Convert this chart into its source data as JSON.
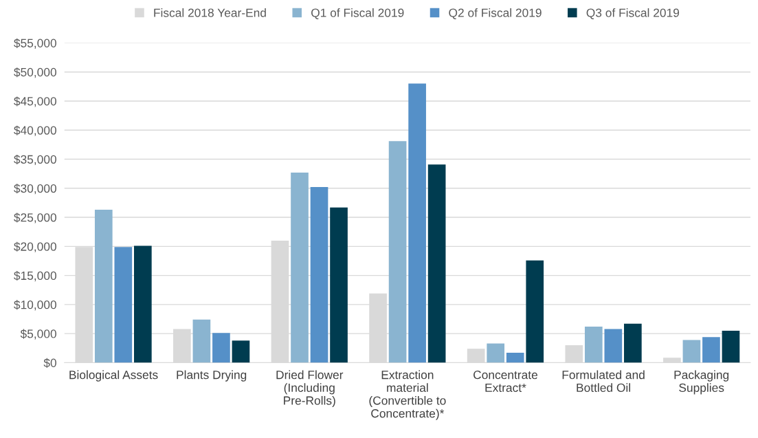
{
  "chart_data": {
    "type": "bar",
    "categories": [
      "Biological Assets",
      "Plants Drying",
      "Dried Flower\n(Including\nPre-Rolls)",
      "Extraction\nmaterial\n(Convertible to\nConcentrate)*",
      "Concentrate\nExtract*",
      "Formulated and\nBottled Oil",
      "Packaging\nSupplies"
    ],
    "series": [
      {
        "name": "Fiscal 2018 Year-End",
        "color": "#d9d9d9",
        "values": [
          19900,
          5800,
          21000,
          11900,
          2400,
          3000,
          850
        ]
      },
      {
        "name": "Q1 of Fiscal 2019",
        "color": "#8ab4d0",
        "values": [
          26300,
          7400,
          32700,
          38100,
          3300,
          6200,
          3900
        ]
      },
      {
        "name": "Q2 of Fiscal 2019",
        "color": "#5590c8",
        "values": [
          19900,
          5100,
          30200,
          48000,
          1700,
          5800,
          4400
        ]
      },
      {
        "name": "Q3 of Fiscal 2019",
        "color": "#003c50",
        "values": [
          20100,
          3800,
          26700,
          34100,
          17600,
          6700,
          5500
        ]
      }
    ],
    "ylim": [
      0,
      55000
    ],
    "yticks": [
      {
        "value": 0,
        "label": "$0"
      },
      {
        "value": 5000,
        "label": "$5,000"
      },
      {
        "value": 10000,
        "label": "$10,000"
      },
      {
        "value": 15000,
        "label": "$15,000"
      },
      {
        "value": 20000,
        "label": "$20,000"
      },
      {
        "value": 25000,
        "label": "$25,000"
      },
      {
        "value": 30000,
        "label": "$30,000"
      },
      {
        "value": 35000,
        "label": "$35,000"
      },
      {
        "value": 40000,
        "label": "$40,000"
      },
      {
        "value": 45000,
        "label": "$45,000"
      },
      {
        "value": 50000,
        "label": "$50,000"
      },
      {
        "value": 55000,
        "label": "$55,000"
      }
    ],
    "grid": "y",
    "legend": "top"
  }
}
